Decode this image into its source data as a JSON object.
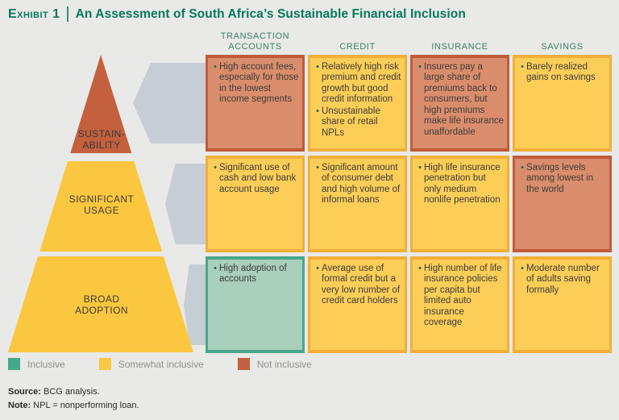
{
  "title": {
    "exhibit_label": "Exhibit 1",
    "text": "An Assessment of South Africa’s Sustainable Financial Inclusion"
  },
  "columns": [
    "TRANSACTION ACCOUNTS",
    "CREDIT",
    "INSURANCE",
    "SAVINGS"
  ],
  "pyramid": {
    "levels": [
      {
        "id": "sustainability",
        "line1": "SUSTAIN-",
        "line2": "ABILITY",
        "color": "#C4603E"
      },
      {
        "id": "significant-usage",
        "line1": "SIGNIFICANT",
        "line2": "USAGE",
        "color": "#FBC740"
      },
      {
        "id": "broad-adoption",
        "line1": "BROAD",
        "line2": "ADOPTION",
        "color": "#FBC740"
      }
    ]
  },
  "status_styles": {
    "inclusive": {
      "fill": "#A9CFBD",
      "border": "#49A78B"
    },
    "somewhat-inclusive": {
      "fill": "#FCCE58",
      "border": "#F0B03A"
    },
    "not-inclusive": {
      "fill": "#DA8D6C",
      "border": "#C05B3A"
    }
  },
  "grid": {
    "rows": [
      {
        "level": "sustainability",
        "cells": [
          {
            "status": "not-inclusive",
            "bullets": [
              "High account fees, especially for those in the lowest income segments"
            ]
          },
          {
            "status": "somewhat-inclusive",
            "bullets": [
              "Relatively high risk premium and credit growth but good credit information",
              "Unsustainable share of retail NPLs"
            ]
          },
          {
            "status": "not-inclusive",
            "bullets": [
              "Insurers pay a large share of premiums back to consumers, but high premiums make life insurance unaffordable"
            ]
          },
          {
            "status": "somewhat-inclusive",
            "bullets": [
              "Barely realized gains on savings"
            ]
          }
        ]
      },
      {
        "level": "significant-usage",
        "cells": [
          {
            "status": "somewhat-inclusive",
            "bullets": [
              "Significant use of cash and low bank account usage"
            ]
          },
          {
            "status": "somewhat-inclusive",
            "bullets": [
              "Significant amount of consumer debt and high volume of informal loans"
            ]
          },
          {
            "status": "somewhat-inclusive",
            "bullets": [
              "High life insurance penetration but only medium nonlife penetration"
            ]
          },
          {
            "status": "not-inclusive",
            "bullets": [
              "Savings levels among lowest in the world"
            ]
          }
        ]
      },
      {
        "level": "broad-adoption",
        "cells": [
          {
            "status": "inclusive",
            "bullets": [
              "High adoption of accounts"
            ]
          },
          {
            "status": "somewhat-inclusive",
            "bullets": [
              "Average use of formal credit but a very low number of credit card holders"
            ]
          },
          {
            "status": "somewhat-inclusive",
            "bullets": [
              "High number of life insurance policies per capita but limited auto insurance coverage"
            ]
          },
          {
            "status": "somewhat-inclusive",
            "bullets": [
              "Moderate number of adults saving formally"
            ]
          }
        ]
      }
    ]
  },
  "legend": [
    {
      "status": "inclusive",
      "label": "Inclusive",
      "color": "#45A88B"
    },
    {
      "status": "somewhat-inclusive",
      "label": "Somewhat inclusive",
      "color": "#FBC845"
    },
    {
      "status": "not-inclusive",
      "label": "Not inclusive",
      "color": "#C2603F"
    }
  ],
  "footer": {
    "source_label": "Source:",
    "source_text": " BCG analysis.",
    "note_label": "Note:",
    "note_text": " NPL = nonperforming loan."
  },
  "accent_colors": {
    "title_green": "#05795B",
    "header_green": "#3A8069",
    "connector_gray": "#C7CDD4",
    "background": "#E9E9E7"
  }
}
